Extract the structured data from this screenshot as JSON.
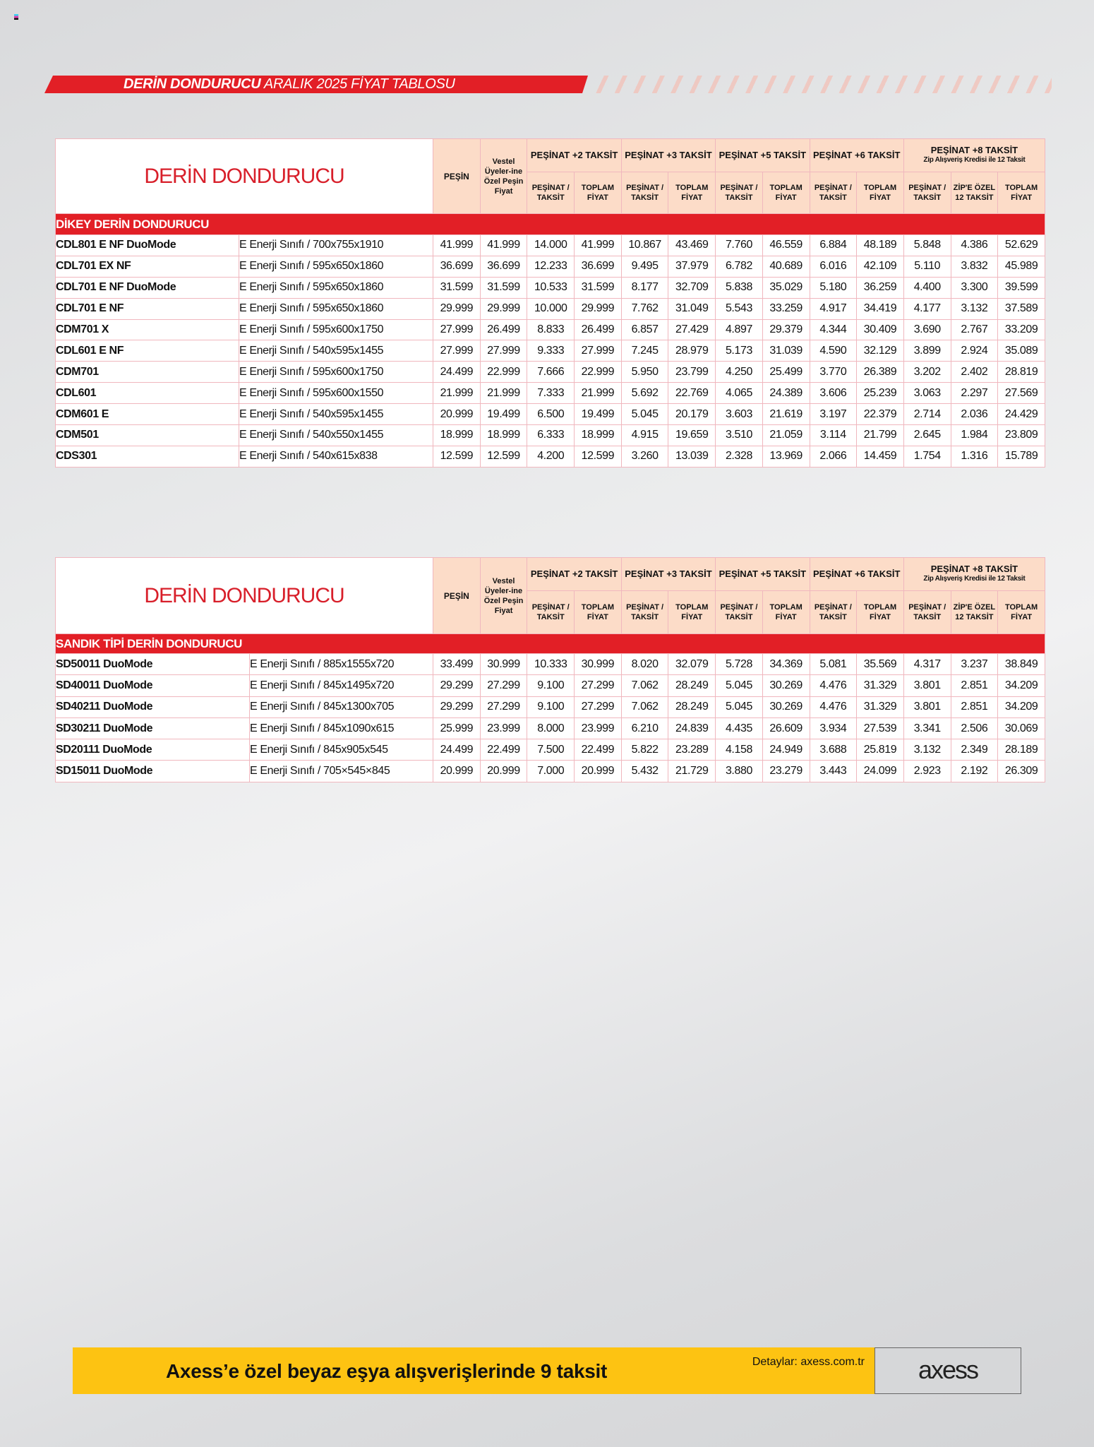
{
  "banner": {
    "title_bold": "DERİN DONDURUCU",
    "title_rest": "ARALIK 2025 FİYAT TABLOSU"
  },
  "colors": {
    "accent": "#e21f26",
    "header_bg": "#fcdcc8",
    "footer": "#fdc312"
  },
  "headers": {
    "title": "DERİN DONDURUCU",
    "pesin": "PEŞİN",
    "vestel": "Vestel Üyeler-ine Özel Peşin Fiyat",
    "groups": [
      {
        "label": "PEŞİNAT +2 TAKSİT"
      },
      {
        "label": "PEŞİNAT +3 TAKSİT"
      },
      {
        "label": "PEŞİNAT +5 TAKSİT"
      },
      {
        "label": "PEŞİNAT +6 TAKSİT"
      },
      {
        "label": "PEŞİNAT +8 TAKSİT",
        "sub": "Zip Alışveriş Kredisi ile 12 Taksit"
      }
    ],
    "pesinat_taksit": "PEŞİNAT / TAKSİT",
    "toplam_fiyat": "TOPLAM FİYAT",
    "zip": "ZİP'E ÖZEL 12 TAKSİT"
  },
  "tables": [
    {
      "section": "DİKEY DERİN DONDURUCU",
      "rows": [
        [
          "CDL801 E NF DuoMode",
          "E Enerji Sınıfı / 700x755x1910",
          "41.999",
          "41.999",
          "14.000",
          "41.999",
          "10.867",
          "43.469",
          "7.760",
          "46.559",
          "6.884",
          "48.189",
          "5.848",
          "4.386",
          "52.629"
        ],
        [
          "CDL701 EX NF",
          "E Enerji Sınıfı / 595x650x1860",
          "36.699",
          "36.699",
          "12.233",
          "36.699",
          "9.495",
          "37.979",
          "6.782",
          "40.689",
          "6.016",
          "42.109",
          "5.110",
          "3.832",
          "45.989"
        ],
        [
          "CDL701 E NF DuoMode",
          "E Enerji Sınıfı / 595x650x1860",
          "31.599",
          "31.599",
          "10.533",
          "31.599",
          "8.177",
          "32.709",
          "5.838",
          "35.029",
          "5.180",
          "36.259",
          "4.400",
          "3.300",
          "39.599"
        ],
        [
          "CDL701 E NF",
          "E Enerji Sınıfı / 595x650x1860",
          "29.999",
          "29.999",
          "10.000",
          "29.999",
          "7.762",
          "31.049",
          "5.543",
          "33.259",
          "4.917",
          "34.419",
          "4.177",
          "3.132",
          "37.589"
        ],
        [
          "CDM701 X",
          "E Enerji Sınıfı / 595x600x1750",
          "27.999",
          "26.499",
          "8.833",
          "26.499",
          "6.857",
          "27.429",
          "4.897",
          "29.379",
          "4.344",
          "30.409",
          "3.690",
          "2.767",
          "33.209"
        ],
        [
          "CDL601 E NF",
          "E Enerji Sınıfı / 540x595x1455",
          "27.999",
          "27.999",
          "9.333",
          "27.999",
          "7.245",
          "28.979",
          "5.173",
          "31.039",
          "4.590",
          "32.129",
          "3.899",
          "2.924",
          "35.089"
        ],
        [
          "CDM701",
          "E Enerji Sınıfı / 595x600x1750",
          "24.499",
          "22.999",
          "7.666",
          "22.999",
          "5.950",
          "23.799",
          "4.250",
          "25.499",
          "3.770",
          "26.389",
          "3.202",
          "2.402",
          "28.819"
        ],
        [
          "CDL601",
          "E Enerji Sınıfı / 595x600x1550",
          "21.999",
          "21.999",
          "7.333",
          "21.999",
          "5.692",
          "22.769",
          "4.065",
          "24.389",
          "3.606",
          "25.239",
          "3.063",
          "2.297",
          "27.569"
        ],
        [
          "CDM601 E",
          "E Enerji Sınıfı / 540x595x1455",
          "20.999",
          "19.499",
          "6.500",
          "19.499",
          "5.045",
          "20.179",
          "3.603",
          "21.619",
          "3.197",
          "22.379",
          "2.714",
          "2.036",
          "24.429"
        ],
        [
          "CDM501",
          "E Enerji Sınıfı / 540x550x1455",
          "18.999",
          "18.999",
          "6.333",
          "18.999",
          "4.915",
          "19.659",
          "3.510",
          "21.059",
          "3.114",
          "21.799",
          "2.645",
          "1.984",
          "23.809"
        ],
        [
          "CDS301",
          "E Enerji Sınıfı / 540x615x838",
          "12.599",
          "12.599",
          "4.200",
          "12.599",
          "3.260",
          "13.039",
          "2.328",
          "13.969",
          "2.066",
          "14.459",
          "1.754",
          "1.316",
          "15.789"
        ]
      ]
    },
    {
      "section": "SANDIK TİPİ DERİN DONDURUCU",
      "rows": [
        [
          "SD50011 DuoMode",
          "E Enerji Sınıfı / 885x1555x720",
          "33.499",
          "30.999",
          "10.333",
          "30.999",
          "8.020",
          "32.079",
          "5.728",
          "34.369",
          "5.081",
          "35.569",
          "4.317",
          "3.237",
          "38.849"
        ],
        [
          "SD40011 DuoMode",
          "E Enerji Sınıfı / 845x1495x720",
          "29.299",
          "27.299",
          "9.100",
          "27.299",
          "7.062",
          "28.249",
          "5.045",
          "30.269",
          "4.476",
          "31.329",
          "3.801",
          "2.851",
          "34.209"
        ],
        [
          "SD40211 DuoMode",
          "E Enerji Sınıfı / 845x1300x705",
          "29.299",
          "27.299",
          "9.100",
          "27.299",
          "7.062",
          "28.249",
          "5.045",
          "30.269",
          "4.476",
          "31.329",
          "3.801",
          "2.851",
          "34.209"
        ],
        [
          "SD30211 DuoMode",
          "E Enerji Sınıfı / 845x1090x615",
          "25.999",
          "23.999",
          "8.000",
          "23.999",
          "6.210",
          "24.839",
          "4.435",
          "26.609",
          "3.934",
          "27.539",
          "3.341",
          "2.506",
          "30.069"
        ],
        [
          "SD20111 DuoMode",
          "E Enerji Sınıfı / 845x905x545",
          "24.499",
          "22.499",
          "7.500",
          "22.499",
          "5.822",
          "23.289",
          "4.158",
          "24.949",
          "3.688",
          "25.819",
          "3.132",
          "2.349",
          "28.189"
        ],
        [
          "SD15011 DuoMode",
          "E Enerji Sınıfı / 705×545×845",
          "20.999",
          "20.999",
          "7.000",
          "20.999",
          "5.432",
          "21.729",
          "3.880",
          "23.279",
          "3.443",
          "24.099",
          "2.923",
          "2.192",
          "26.309"
        ]
      ]
    }
  ],
  "footer": {
    "message": "Axess’e özel beyaz eşya alışverişlerinde 9 taksit",
    "details": "Detaylar: axess.com.tr",
    "logo": "axess"
  }
}
